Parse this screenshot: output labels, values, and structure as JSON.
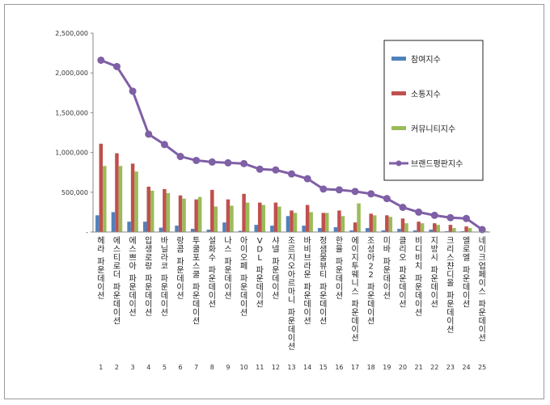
{
  "chart_data": {
    "type": "bar",
    "title": "",
    "xlabel": "",
    "ylabel": "",
    "ylim": [
      0,
      2500000
    ],
    "yticks": [
      "-",
      "500,000",
      "1,000,000",
      "1,500,000",
      "2,000,000",
      "2,500,000"
    ],
    "grid": false,
    "legend_position": "right",
    "categories": [
      "헤라 파운데이션",
      "에스티로더 파운데이션",
      "에스쁘아 파운데이션",
      "입생로랑 파운데이션",
      "바닐라코 파운데이션",
      "랑콤 파운데이션",
      "투쿨포스쿨 파운데이션",
      "설화수 파운데이션",
      "나스 파운데이션",
      "아이오페 파운데이션",
      "VDL 파운데이션",
      "샤넬 파운데이션",
      "조르지오아르마니 파운데이션",
      "바비브라운 파운데이션",
      "정샘물뷰티 파운데이션",
      "한율 파운데이션",
      "에이지투웨니스 파운데이션",
      "조성아22 파운데이션",
      "미바 파운데이션",
      "클리오 파운데이션",
      "비디비치 파운데이션",
      "지방시 파운데이션",
      "크리스챤디올 파운데이션",
      "엘로엘 파운데이션",
      "네이크업페이스 파운데이션"
    ],
    "x": [
      "1",
      "2",
      "3",
      "4",
      "5",
      "6",
      "7",
      "8",
      "9",
      "10",
      "11",
      "12",
      "13",
      "14",
      "15",
      "16",
      "17",
      "18",
      "19",
      "20",
      "21",
      "22",
      "23",
      "24",
      "25"
    ],
    "series": [
      {
        "name": "참여지수",
        "type": "bar",
        "color": "#4f81bd",
        "values": [
          210000,
          250000,
          130000,
          130000,
          55000,
          80000,
          40000,
          30000,
          120000,
          15000,
          90000,
          80000,
          200000,
          80000,
          50000,
          60000,
          20000,
          50000,
          20000,
          40000,
          20000,
          30000,
          10000,
          10000,
          5000
        ]
      },
      {
        "name": "소통지수",
        "type": "bar",
        "color": "#c0504d",
        "values": [
          1110000,
          990000,
          860000,
          570000,
          540000,
          460000,
          410000,
          530000,
          410000,
          480000,
          370000,
          370000,
          270000,
          340000,
          240000,
          270000,
          120000,
          230000,
          210000,
          170000,
          130000,
          110000,
          90000,
          70000,
          20000
        ]
      },
      {
        "name": "커뮤니티지수",
        "type": "bar",
        "color": "#9bbb59",
        "values": [
          830000,
          830000,
          760000,
          520000,
          490000,
          420000,
          440000,
          320000,
          330000,
          370000,
          340000,
          320000,
          240000,
          250000,
          240000,
          200000,
          360000,
          210000,
          190000,
          110000,
          110000,
          90000,
          50000,
          50000,
          10000
        ]
      },
      {
        "name": "브랜드평판지수",
        "type": "line",
        "color": "#7f5fa6",
        "values": [
          2160000,
          2080000,
          1770000,
          1230000,
          1100000,
          950000,
          900000,
          880000,
          870000,
          860000,
          790000,
          780000,
          730000,
          670000,
          540000,
          530000,
          510000,
          480000,
          420000,
          310000,
          250000,
          210000,
          180000,
          170000,
          30000
        ]
      }
    ]
  }
}
